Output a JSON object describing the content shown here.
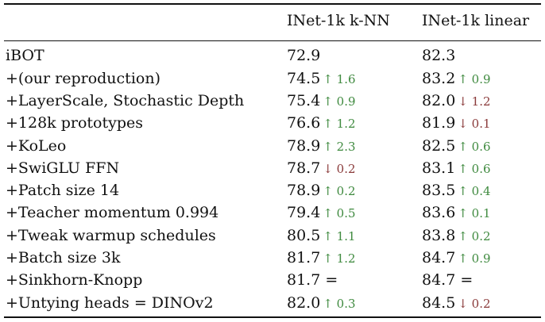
{
  "table": {
    "headers": {
      "knn": "INet-1k k-NN",
      "linear": "INet-1k linear"
    },
    "rows": [
      {
        "method": "iBOT",
        "knn": "72.9",
        "knn_delta": "",
        "knn_dir": "",
        "linear": "82.3",
        "linear_delta": "",
        "linear_dir": ""
      },
      {
        "method": "+(our reproduction)",
        "knn": "74.5",
        "knn_delta": "↑ 1.6",
        "knn_dir": "up",
        "linear": "83.2",
        "linear_delta": "↑ 0.9",
        "linear_dir": "up"
      },
      {
        "method": "+LayerScale, Stochastic Depth",
        "knn": "75.4",
        "knn_delta": "↑ 0.9",
        "knn_dir": "up",
        "linear": "82.0",
        "linear_delta": "↓ 1.2",
        "linear_dir": "down"
      },
      {
        "method": "+128k prototypes",
        "knn": "76.6",
        "knn_delta": "↑ 1.2",
        "knn_dir": "up",
        "linear": "81.9",
        "linear_delta": "↓ 0.1",
        "linear_dir": "down"
      },
      {
        "method": "+KoLeo",
        "knn": "78.9",
        "knn_delta": "↑ 2.3",
        "knn_dir": "up",
        "linear": "82.5",
        "linear_delta": "↑ 0.6",
        "linear_dir": "up"
      },
      {
        "method": "+SwiGLU FFN",
        "knn": "78.7",
        "knn_delta": "↓ 0.2",
        "knn_dir": "down",
        "linear": "83.1",
        "linear_delta": "↑ 0.6",
        "linear_dir": "up"
      },
      {
        "method": "+Patch size 14",
        "knn": "78.9",
        "knn_delta": "↑ 0.2",
        "knn_dir": "up",
        "linear": "83.5",
        "linear_delta": "↑ 0.4",
        "linear_dir": "up"
      },
      {
        "method": "+Teacher momentum 0.994",
        "knn": "79.4",
        "knn_delta": "↑ 0.5",
        "knn_dir": "up",
        "linear": "83.6",
        "linear_delta": "↑ 0.1",
        "linear_dir": "up"
      },
      {
        "method": "+Tweak warmup schedules",
        "knn": "80.5",
        "knn_delta": "↑ 1.1",
        "knn_dir": "up",
        "linear": "83.8",
        "linear_delta": "↑ 0.2",
        "linear_dir": "up"
      },
      {
        "method": "+Batch size 3k",
        "knn": "81.7",
        "knn_delta": "↑ 1.2",
        "knn_dir": "up",
        "linear": "84.7",
        "linear_delta": "↑ 0.9",
        "linear_dir": "up"
      },
      {
        "method": "+Sinkhorn-Knopp",
        "knn": "81.7 =",
        "knn_delta": "",
        "knn_dir": "",
        "linear": "84.7 =",
        "linear_delta": "",
        "linear_dir": ""
      },
      {
        "method": "+Untying heads = DINOv2",
        "knn": "82.0",
        "knn_delta": "↑ 0.3",
        "knn_dir": "up",
        "linear": "84.5",
        "linear_delta": "↓ 0.2",
        "linear_dir": "down"
      }
    ]
  }
}
